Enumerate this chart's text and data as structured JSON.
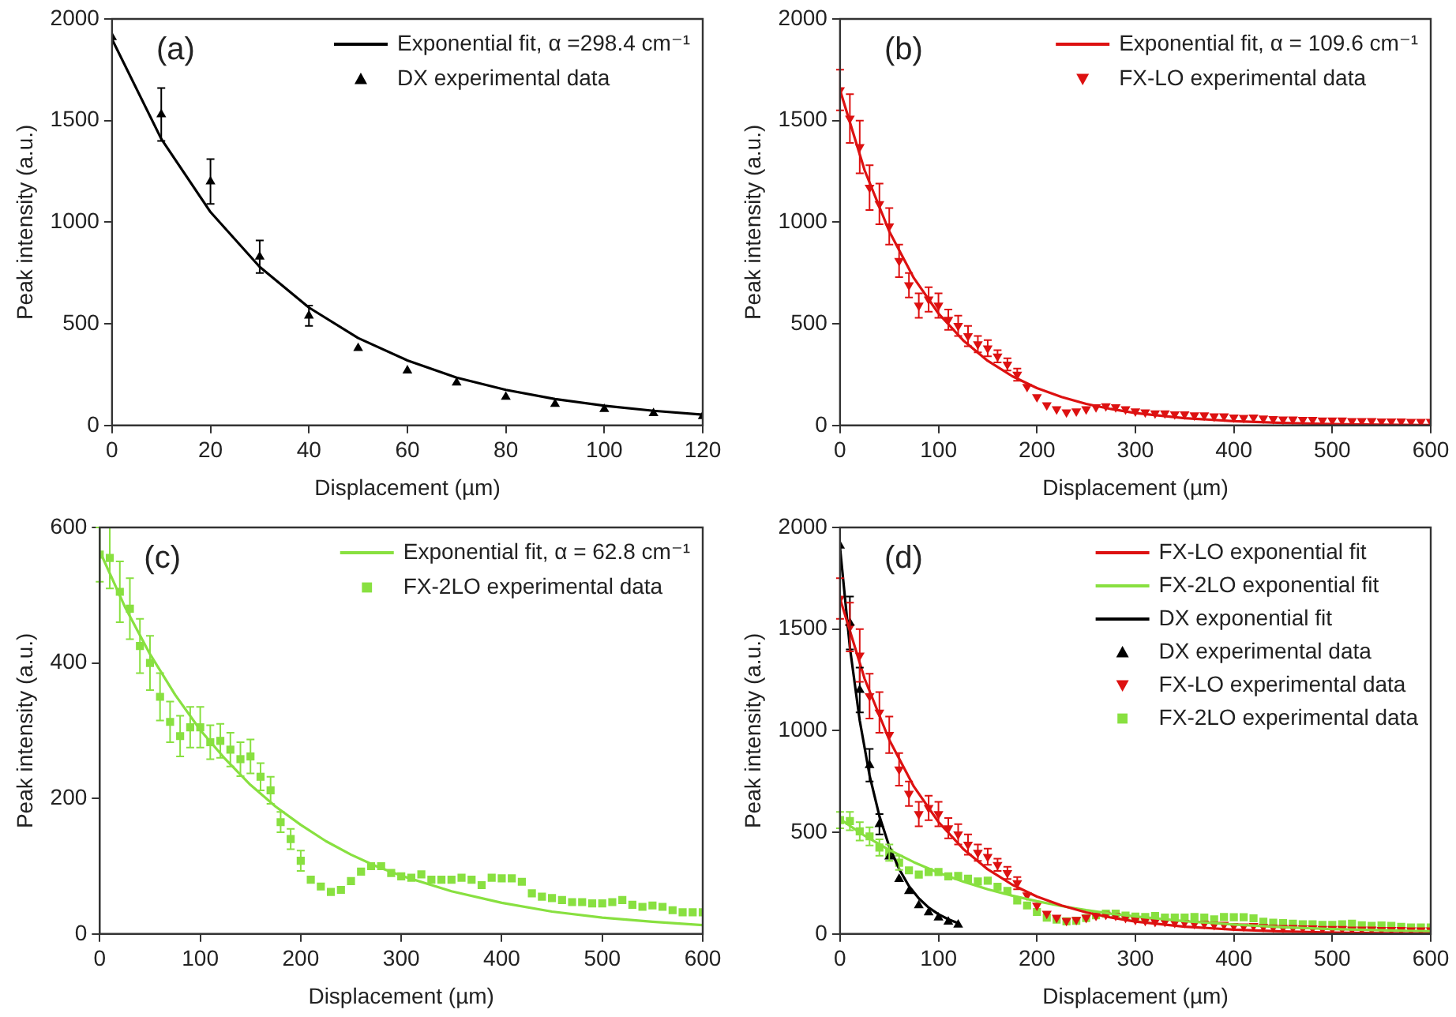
{
  "chart_data": [
    {
      "type": "scatter",
      "annotations": [
        "(a)"
      ],
      "xlabel": "Displacement (µm)",
      "ylabel": "Peak intensity (a.u.)",
      "xlim": [
        0,
        120
      ],
      "xticks": [
        0,
        20,
        40,
        60,
        80,
        100,
        120
      ],
      "ylim": [
        0,
        2000
      ],
      "yticks": [
        0,
        500,
        1000,
        1500,
        2000
      ],
      "grid": false,
      "legend": "top right",
      "series": [
        {
          "name": "Exponential fit, α =298.4 cm⁻¹",
          "type": "line",
          "color": "#000000",
          "marker": "none",
          "x": [
            0,
            10,
            20,
            30,
            40,
            50,
            60,
            70,
            80,
            90,
            100,
            110,
            120
          ],
          "values": [
            1900,
            1410,
            1050,
            780,
            580,
            430,
            320,
            235,
            175,
            130,
            97,
            72,
            53
          ]
        },
        {
          "name": "DX experimental data",
          "type": "scatter",
          "color": "#000000",
          "marker": "triangle",
          "x": [
            0,
            10,
            20,
            30,
            40,
            50,
            60,
            70,
            80,
            90,
            100,
            110,
            120
          ],
          "values": [
            1910,
            1530,
            1200,
            830,
            540,
            380,
            270,
            210,
            140,
            105,
            80,
            60,
            45
          ],
          "errors": [
            null,
            130,
            110,
            80,
            50,
            null,
            null,
            null,
            null,
            null,
            null,
            null,
            null
          ]
        }
      ]
    },
    {
      "type": "scatter",
      "annotations": [
        "(b)"
      ],
      "xlabel": "Displacement (µm)",
      "ylabel": "Peak intensity (a.u.)",
      "xlim": [
        0,
        600
      ],
      "xticks": [
        0,
        100,
        200,
        300,
        400,
        500,
        600
      ],
      "ylim": [
        0,
        2000
      ],
      "yticks": [
        0,
        500,
        1000,
        1500,
        2000
      ],
      "grid": false,
      "legend": "top right",
      "series": [
        {
          "name": "Exponential fit, α = 109.6 cm⁻¹",
          "type": "line",
          "color": "#dd1111",
          "marker": "none",
          "x": [
            0,
            25,
            50,
            75,
            100,
            125,
            150,
            175,
            200,
            225,
            250,
            275,
            300,
            350,
            400,
            450,
            500,
            550,
            600
          ],
          "values": [
            1650,
            1255,
            955,
            725,
            551,
            419,
            318,
            242,
            184,
            140,
            106,
            81,
            61,
            36,
            21,
            12,
            7,
            4,
            2
          ]
        },
        {
          "name": "FX-LO experimental data",
          "type": "scatter",
          "color": "#dd1111",
          "marker": "triangle-down",
          "x": [
            0,
            10,
            20,
            30,
            40,
            50,
            60,
            70,
            80,
            90,
            100,
            110,
            120,
            130,
            140,
            150,
            160,
            170,
            180,
            190,
            200,
            210,
            220,
            230,
            240,
            250,
            260,
            270,
            280,
            290,
            300,
            310,
            320,
            330,
            340,
            350,
            360,
            370,
            380,
            390,
            400,
            410,
            420,
            430,
            440,
            450,
            460,
            470,
            480,
            490,
            500,
            510,
            520,
            530,
            540,
            550,
            560,
            570,
            580,
            590,
            600
          ],
          "values": [
            1650,
            1510,
            1370,
            1170,
            1090,
            980,
            810,
            690,
            590,
            620,
            590,
            520,
            490,
            440,
            400,
            380,
            340,
            300,
            250,
            190,
            140,
            100,
            80,
            65,
            70,
            80,
            90,
            95,
            90,
            80,
            70,
            65,
            60,
            60,
            55,
            55,
            50,
            50,
            45,
            45,
            40,
            38,
            40,
            35,
            32,
            30,
            30,
            28,
            28,
            25,
            25,
            25,
            22,
            22,
            22,
            20,
            20,
            20,
            18,
            18,
            18
          ],
          "errors": [
            100,
            120,
            130,
            110,
            100,
            90,
            80,
            60,
            60,
            60,
            60,
            50,
            50,
            50,
            40,
            40,
            30,
            30,
            30,
            null,
            null,
            null,
            null,
            null,
            null,
            null,
            null,
            null,
            null,
            null,
            null,
            null,
            null,
            null,
            null,
            null,
            null,
            null,
            null,
            null,
            null,
            null,
            null,
            null,
            null,
            null,
            null,
            null,
            null,
            null,
            null,
            null,
            null,
            null,
            null,
            null,
            null,
            null,
            null,
            null,
            null
          ]
        }
      ]
    },
    {
      "type": "scatter",
      "annotations": [
        "(c)"
      ],
      "xlabel": "Displacement (µm)",
      "ylabel": "Peak intensity (a.u.)",
      "xlim": [
        0,
        600
      ],
      "xticks": [
        0,
        100,
        200,
        300,
        400,
        500,
        600
      ],
      "ylim": [
        0,
        600
      ],
      "yticks": [
        0,
        200,
        400,
        600
      ],
      "grid": false,
      "legend": "top right",
      "series": [
        {
          "name": "Exponential fit, α = 62.8 cm⁻¹",
          "type": "line",
          "color": "#88e040",
          "marker": "none",
          "x": [
            0,
            25,
            50,
            75,
            100,
            125,
            150,
            175,
            200,
            225,
            250,
            275,
            300,
            350,
            400,
            450,
            500,
            550,
            600
          ],
          "values": [
            565,
            483,
            413,
            353,
            301,
            258,
            220,
            188,
            161,
            137,
            117,
            100,
            86,
            63,
            46,
            33,
            24,
            18,
            13
          ]
        },
        {
          "name": "FX-2LO experimental data",
          "type": "scatter",
          "color": "#88e040",
          "marker": "square",
          "x": [
            0,
            10,
            20,
            30,
            40,
            50,
            60,
            70,
            80,
            90,
            100,
            110,
            120,
            130,
            140,
            150,
            160,
            170,
            180,
            190,
            200,
            210,
            220,
            230,
            240,
            250,
            260,
            270,
            280,
            290,
            300,
            310,
            320,
            330,
            340,
            350,
            360,
            370,
            380,
            390,
            400,
            410,
            420,
            430,
            440,
            450,
            460,
            470,
            480,
            490,
            500,
            510,
            520,
            530,
            540,
            550,
            560,
            570,
            580,
            590,
            600
          ],
          "values": [
            560,
            555,
            505,
            480,
            425,
            400,
            350,
            313,
            292,
            305,
            305,
            283,
            285,
            272,
            258,
            262,
            232,
            212,
            165,
            140,
            108,
            80,
            70,
            62,
            65,
            78,
            92,
            100,
            100,
            90,
            85,
            83,
            88,
            80,
            80,
            80,
            83,
            80,
            72,
            83,
            82,
            82,
            77,
            60,
            55,
            53,
            50,
            47,
            47,
            45,
            45,
            47,
            50,
            43,
            40,
            42,
            40,
            35,
            32,
            32,
            32
          ],
          "errors": [
            40,
            45,
            45,
            45,
            40,
            40,
            35,
            30,
            30,
            30,
            30,
            25,
            25,
            25,
            25,
            25,
            20,
            20,
            15,
            15,
            15,
            null,
            null,
            null,
            null,
            null,
            null,
            null,
            null,
            null,
            null,
            null,
            null,
            null,
            null,
            null,
            null,
            null,
            null,
            null,
            null,
            null,
            null,
            null,
            null,
            null,
            null,
            null,
            null,
            null,
            null,
            null,
            null,
            null,
            null,
            null,
            null,
            null,
            null,
            null,
            null
          ]
        }
      ]
    },
    {
      "type": "scatter",
      "annotations": [
        "(d)"
      ],
      "xlabel": "Displacement (µm)",
      "ylabel": "Peak intensity (a.u.)",
      "xlim": [
        0,
        600
      ],
      "xticks": [
        0,
        100,
        200,
        300,
        400,
        500,
        600
      ],
      "ylim": [
        0,
        2000
      ],
      "yticks": [
        0,
        500,
        1000,
        1500,
        2000
      ],
      "grid": false,
      "legend": "top right",
      "series": [
        {
          "name": "FX-LO exponential fit",
          "type": "line",
          "color": "#dd1111",
          "marker": "none",
          "x": [
            0,
            25,
            50,
            75,
            100,
            125,
            150,
            175,
            200,
            225,
            250,
            275,
            300,
            350,
            400,
            450,
            500,
            550,
            600
          ],
          "values": [
            1650,
            1255,
            955,
            725,
            551,
            419,
            318,
            242,
            184,
            140,
            106,
            81,
            61,
            36,
            21,
            12,
            7,
            4,
            2
          ]
        },
        {
          "name": "FX-2LO exponential fit",
          "type": "line",
          "color": "#88e040",
          "marker": "none",
          "x": [
            0,
            25,
            50,
            75,
            100,
            125,
            150,
            175,
            200,
            225,
            250,
            275,
            300,
            350,
            400,
            450,
            500,
            550,
            600
          ],
          "values": [
            565,
            483,
            413,
            353,
            301,
            258,
            220,
            188,
            161,
            137,
            117,
            100,
            86,
            63,
            46,
            33,
            24,
            18,
            13
          ]
        },
        {
          "name": "DX exponential fit",
          "type": "line",
          "color": "#000000",
          "marker": "none",
          "x": [
            0,
            10,
            20,
            30,
            40,
            50,
            60,
            70,
            80,
            90,
            100,
            110,
            120
          ],
          "values": [
            1900,
            1410,
            1050,
            780,
            580,
            430,
            320,
            235,
            175,
            130,
            97,
            72,
            53
          ]
        },
        {
          "name": "DX experimental data",
          "type": "scatter",
          "color": "#000000",
          "marker": "triangle",
          "x": [
            0,
            10,
            20,
            30,
            40,
            50,
            60,
            70,
            80,
            90,
            100,
            110,
            120
          ],
          "values": [
            1910,
            1530,
            1200,
            830,
            540,
            380,
            270,
            210,
            140,
            105,
            80,
            60,
            45
          ],
          "errors": [
            null,
            130,
            110,
            80,
            50,
            null,
            null,
            null,
            null,
            null,
            null,
            null,
            null
          ]
        },
        {
          "name": "FX-LO experimental data",
          "type": "scatter",
          "color": "#dd1111",
          "marker": "triangle-down",
          "x": [
            0,
            10,
            20,
            30,
            40,
            50,
            60,
            70,
            80,
            90,
            100,
            110,
            120,
            130,
            140,
            150,
            160,
            170,
            180,
            190,
            200,
            210,
            220,
            230,
            240,
            250,
            260,
            270,
            280,
            290,
            300,
            310,
            320,
            330,
            340,
            350,
            360,
            370,
            380,
            390,
            400,
            410,
            420,
            430,
            440,
            450,
            460,
            470,
            480,
            490,
            500,
            510,
            520,
            530,
            540,
            550,
            560,
            570,
            580,
            590,
            600
          ],
          "values": [
            1650,
            1510,
            1370,
            1170,
            1090,
            980,
            810,
            690,
            590,
            620,
            590,
            520,
            490,
            440,
            400,
            380,
            340,
            300,
            250,
            190,
            140,
            100,
            80,
            65,
            70,
            80,
            90,
            95,
            90,
            80,
            70,
            65,
            60,
            60,
            55,
            55,
            50,
            50,
            45,
            45,
            40,
            38,
            40,
            35,
            32,
            30,
            30,
            28,
            28,
            25,
            25,
            25,
            22,
            22,
            22,
            20,
            20,
            20,
            18,
            18,
            18
          ],
          "errors": [
            100,
            120,
            130,
            110,
            100,
            90,
            80,
            60,
            60,
            60,
            60,
            50,
            50,
            50,
            40,
            40,
            30,
            30,
            30,
            null,
            null,
            null,
            null,
            null,
            null,
            null,
            null,
            null,
            null,
            null,
            null,
            null,
            null,
            null,
            null,
            null,
            null,
            null,
            null,
            null,
            null,
            null,
            null,
            null,
            null,
            null,
            null,
            null,
            null,
            null,
            null,
            null,
            null,
            null,
            null,
            null,
            null,
            null,
            null,
            null,
            null
          ]
        },
        {
          "name": "FX-2LO experimental data",
          "type": "scatter",
          "color": "#88e040",
          "marker": "square",
          "x": [
            0,
            10,
            20,
            30,
            40,
            50,
            60,
            70,
            80,
            90,
            100,
            110,
            120,
            130,
            140,
            150,
            160,
            170,
            180,
            190,
            200,
            210,
            220,
            230,
            240,
            250,
            260,
            270,
            280,
            290,
            300,
            310,
            320,
            330,
            340,
            350,
            360,
            370,
            380,
            390,
            400,
            410,
            420,
            430,
            440,
            450,
            460,
            470,
            480,
            490,
            500,
            510,
            520,
            530,
            540,
            550,
            560,
            570,
            580,
            590,
            600
          ],
          "values": [
            560,
            555,
            505,
            480,
            425,
            400,
            350,
            313,
            292,
            305,
            305,
            283,
            285,
            272,
            258,
            262,
            232,
            212,
            165,
            140,
            108,
            80,
            70,
            62,
            65,
            78,
            92,
            100,
            100,
            90,
            85,
            83,
            88,
            80,
            80,
            80,
            83,
            80,
            72,
            83,
            82,
            82,
            77,
            60,
            55,
            53,
            50,
            47,
            47,
            45,
            45,
            47,
            50,
            43,
            40,
            42,
            40,
            35,
            32,
            32,
            32
          ],
          "errors": [
            40,
            45,
            45,
            45,
            40,
            40,
            35,
            null,
            null,
            null,
            null,
            null,
            null,
            null,
            null,
            null,
            null,
            null,
            null,
            null,
            null,
            null,
            null,
            null,
            null,
            null,
            null,
            null,
            null,
            null,
            null,
            null,
            null,
            null,
            null,
            null,
            null,
            null,
            null,
            null,
            null,
            null,
            null,
            null,
            null,
            null,
            null,
            null,
            null,
            null,
            null,
            null,
            null,
            null,
            null,
            null,
            null,
            null,
            null,
            null,
            null
          ]
        }
      ]
    }
  ]
}
